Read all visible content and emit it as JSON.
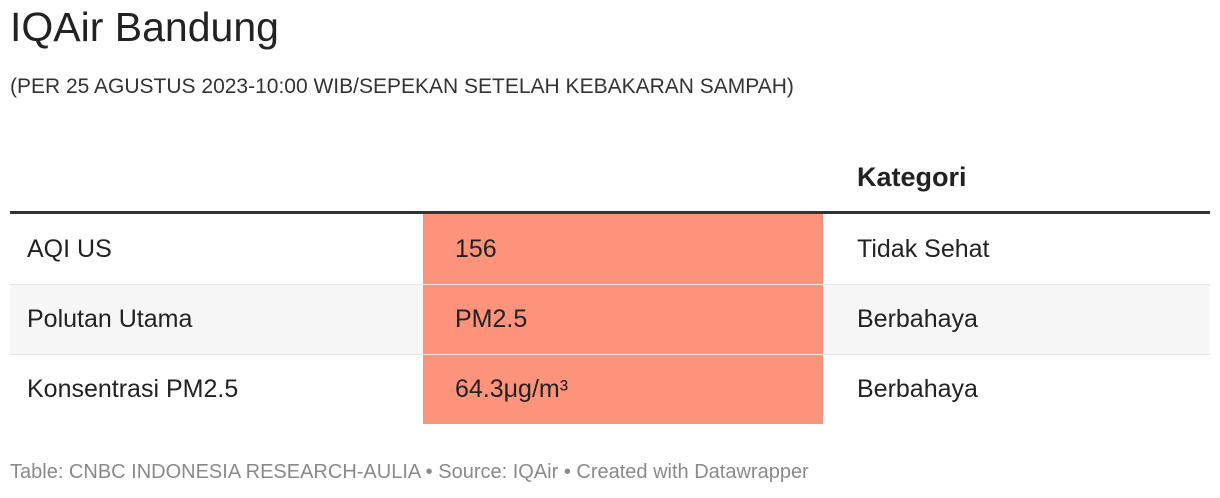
{
  "header": {
    "title": "IQAir Bandung",
    "subtitle": "(PER 25 AGUSTUS 2023-10:00 WIB/SEPEKAN SETELAH KEBAKARAN SAMPAH)"
  },
  "table": {
    "kategori_header": "Kategori",
    "rows": [
      [
        "AQI US",
        "156",
        "Tidak Sehat"
      ],
      [
        "Polutan Utama",
        "PM2.5",
        "Berbahaya"
      ],
      [
        "Konsentrasi PM2.5",
        "64.3μg/m³",
        "Berbahaya"
      ]
    ]
  },
  "footer": "Table: CNBC INDONESIA RESEARCH-AULIA • Source: IQAir • Created with Datawrapper"
}
